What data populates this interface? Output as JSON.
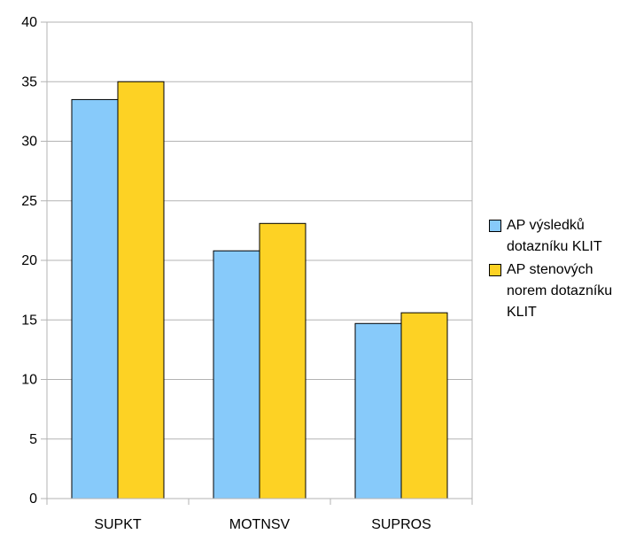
{
  "chart_data": {
    "type": "bar",
    "title": "",
    "xlabel": "",
    "ylabel": "",
    "categories": [
      "SUPKT",
      "MOTNSV",
      "SUPROS"
    ],
    "series": [
      {
        "name": "AP výsledků dotazníku KLIT",
        "values": [
          33.5,
          20.8,
          14.7
        ],
        "color": "#87cafa"
      },
      {
        "name": "AP stenových norem dotazníku KLIT",
        "values": [
          35.0,
          23.1,
          15.6
        ],
        "color": "#fdd224"
      }
    ],
    "ylim": [
      0,
      40
    ],
    "yticks": [
      "0",
      "5",
      "10",
      "15",
      "20",
      "25",
      "30",
      "35",
      "40"
    ],
    "grid": true,
    "legend_position": "right",
    "colors": {
      "gridline": "#b3b3b3",
      "axis": "#b3b3b3",
      "bar_outline": "#000000"
    }
  }
}
